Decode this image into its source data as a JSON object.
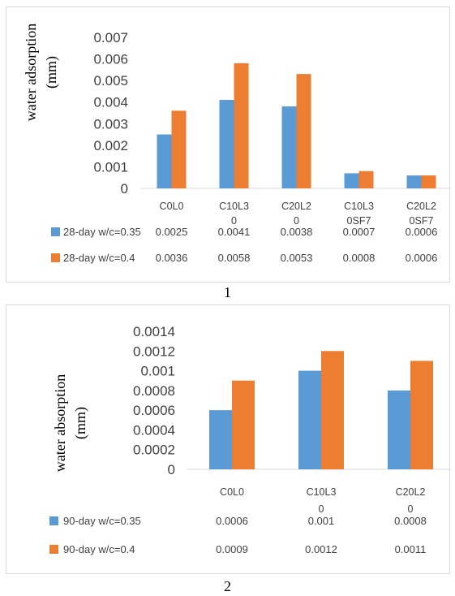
{
  "figures": [
    {
      "number": "1"
    },
    {
      "number": "2"
    }
  ],
  "chart_data": [
    {
      "type": "bar",
      "ylabel": "water adsorption (mm)",
      "ylim": [
        0,
        0.007
      ],
      "yticks": [
        "0",
        "0.001",
        "0.002",
        "0.003",
        "0.004",
        "0.005",
        "0.006",
        "0.007"
      ],
      "categories": [
        "C0L0",
        "C10L30",
        "C20L20",
        "C10L30SF7",
        "C20L20SF7"
      ],
      "category_lines": [
        [
          "C0L0"
        ],
        [
          "C10L3",
          "0"
        ],
        [
          "C20L2",
          "0"
        ],
        [
          "C10L3",
          "0SF7"
        ],
        [
          "C20L2",
          "0SF7"
        ]
      ],
      "series": [
        {
          "name": "28-day w/c=0.35",
          "color": "#5b9bd5",
          "values": [
            0.0025,
            0.0041,
            0.0038,
            0.0007,
            0.0006
          ],
          "labels": [
            "0.0025",
            "0.0041",
            "0.0038",
            "0.0007",
            "0.0006"
          ]
        },
        {
          "name": "28-day w/c=0.4",
          "color": "#ed7d31",
          "values": [
            0.0036,
            0.0058,
            0.0053,
            0.0008,
            0.0006
          ],
          "labels": [
            "0.0036",
            "0.0058",
            "0.0053",
            "0.0008",
            "0.0006"
          ]
        }
      ],
      "grid": false,
      "legend": "data-table"
    },
    {
      "type": "bar",
      "ylabel": "water absorption (mm)",
      "ylim": [
        0,
        0.0014
      ],
      "yticks": [
        "0",
        "0.0002",
        "0.0004",
        "0.0006",
        "0.0008",
        "0.001",
        "0.0012",
        "0.0014"
      ],
      "categories": [
        "C0L0",
        "C10L30",
        "C20L20"
      ],
      "category_lines": [
        [
          "C0L0"
        ],
        [
          "C10L3",
          "0"
        ],
        [
          "C20L2",
          "0"
        ]
      ],
      "series": [
        {
          "name": "90-day w/c=0.35",
          "color": "#5b9bd5",
          "values": [
            0.0006,
            0.001,
            0.0008
          ],
          "labels": [
            "0.0006",
            "0.001",
            "0.0008"
          ]
        },
        {
          "name": "90-day w/c=0.4",
          "color": "#ed7d31",
          "values": [
            0.0009,
            0.0012,
            0.0011
          ],
          "labels": [
            "0.0009",
            "0.0012",
            "0.0011"
          ]
        }
      ],
      "grid": false,
      "legend": "data-table"
    }
  ]
}
